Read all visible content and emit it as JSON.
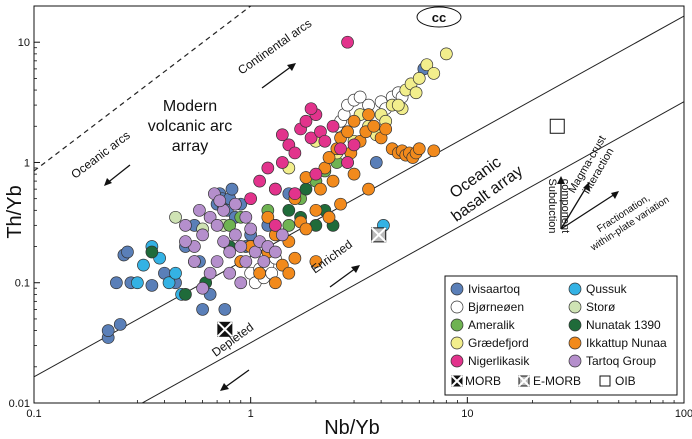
{
  "chart_data": {
    "type": "scatter",
    "xscale": "log",
    "yscale": "log",
    "xlabel": "Nb/Yb",
    "ylabel": "Th/Yb",
    "xlim": [
      0.1,
      100
    ],
    "ylim": [
      0.01,
      20
    ],
    "xticks": [
      {
        "value": 0.1,
        "label": "0.1"
      },
      {
        "value": 1,
        "label": "1"
      },
      {
        "value": 10,
        "label": "10"
      },
      {
        "value": 100,
        "label": "100"
      }
    ],
    "yticks": [
      {
        "value": 0.01,
        "label": "0.01"
      },
      {
        "value": 0.1,
        "label": "0.1"
      },
      {
        "value": 1,
        "label": "1"
      },
      {
        "value": 10,
        "label": "10"
      }
    ],
    "reference_lines": {
      "mantle_array_upper": [
        [
          0.1,
          0.0165
        ],
        [
          100,
          16.5
        ]
      ],
      "mantle_array_lower": [
        [
          0.3,
          0.0095
        ],
        [
          100,
          3.2
        ]
      ],
      "arc_array_dashed": [
        [
          0.1,
          0.85
        ],
        [
          1.0,
          20
        ]
      ]
    },
    "annotations": {
      "cc": "cc",
      "oceanic_arcs": "Oceanic arcs",
      "continental_arcs": "Continental arcs",
      "modern_arc": [
        "Modern",
        "volcanic arc",
        "array"
      ],
      "oceanic_basalt": [
        "Oceanic",
        "basalt array"
      ],
      "enriched": "Enriched",
      "depleted": "Depleted",
      "magma_crust": [
        "Magma-crust",
        "interaction"
      ],
      "subduction": [
        "Subduction",
        "component"
      ],
      "fractionation": [
        "Fractionation,",
        "within-plate variation"
      ]
    },
    "reference_points": [
      {
        "name": "MORB",
        "x": 0.76,
        "y": 0.041,
        "marker": "x-box"
      },
      {
        "name": "E-MORB",
        "x": 3.9,
        "y": 0.25,
        "marker": "x-box-grey"
      },
      {
        "name": "OIB",
        "x": 26,
        "y": 2.0,
        "marker": "open-box"
      }
    ],
    "legend": {
      "position": "bottom-right",
      "items": [
        {
          "name": "Ivisaartoq",
          "color": "#5a7fb8"
        },
        {
          "name": "Qussuk",
          "color": "#34b2e4"
        },
        {
          "name": "Bjørneøen",
          "color": "#ffffff"
        },
        {
          "name": "Storø",
          "color": "#cfe3b4"
        },
        {
          "name": "Ameralik",
          "color": "#6fb352"
        },
        {
          "name": "Nunatak 1390",
          "color": "#1f6b3a"
        },
        {
          "name": "Grædefjord",
          "color": "#f2ee8c"
        },
        {
          "name": "Ikkattup Nunaa",
          "color": "#f28a1c"
        },
        {
          "name": "Nigerlikasik",
          "color": "#e2338c"
        },
        {
          "name": "Tartoq Group",
          "color": "#b58fcc"
        }
      ],
      "ref_items": [
        "MORB",
        "E-MORB",
        "OIB"
      ]
    },
    "series": [
      {
        "name": "Ivisaartoq",
        "color": "#5a7fb8",
        "points": [
          [
            0.22,
            0.035
          ],
          [
            0.22,
            0.04
          ],
          [
            0.25,
            0.045
          ],
          [
            0.24,
            0.1
          ],
          [
            0.28,
            0.1
          ],
          [
            0.26,
            0.17
          ],
          [
            0.27,
            0.18
          ],
          [
            0.35,
            0.095
          ],
          [
            0.4,
            0.12
          ],
          [
            0.45,
            0.1
          ],
          [
            0.5,
            0.2
          ],
          [
            0.55,
            0.3
          ],
          [
            0.58,
            0.15
          ],
          [
            0.6,
            0.06
          ],
          [
            0.65,
            0.08
          ],
          [
            0.7,
            0.45
          ],
          [
            0.72,
            0.55
          ],
          [
            0.74,
            0.5
          ],
          [
            0.75,
            0.42
          ],
          [
            0.78,
            0.4
          ],
          [
            0.8,
            0.5
          ],
          [
            0.82,
            0.6
          ],
          [
            0.85,
            0.35
          ],
          [
            0.9,
            0.45
          ],
          [
            0.95,
            0.2
          ],
          [
            1.0,
            0.25
          ],
          [
            1.2,
            0.3
          ],
          [
            1.5,
            0.55
          ],
          [
            3.8,
            1.0
          ],
          [
            6.3,
            6.0
          ],
          [
            0.76,
            0.06
          ]
        ]
      },
      {
        "name": "Qussuk",
        "color": "#34b2e4",
        "points": [
          [
            0.3,
            0.1
          ],
          [
            0.32,
            0.14
          ],
          [
            0.35,
            0.2
          ],
          [
            0.38,
            0.16
          ],
          [
            0.42,
            0.1
          ],
          [
            0.45,
            0.12
          ],
          [
            0.48,
            0.08
          ],
          [
            4.1,
            0.3
          ]
        ]
      },
      {
        "name": "Bjørneøen",
        "color": "#ffffff",
        "points": [
          [
            0.9,
            0.15
          ],
          [
            1.0,
            0.12
          ],
          [
            1.05,
            0.1
          ],
          [
            1.1,
            0.13
          ],
          [
            1.15,
            0.11
          ],
          [
            1.2,
            0.14
          ],
          [
            1.25,
            0.12
          ],
          [
            1.3,
            0.16
          ],
          [
            2.5,
            2.0
          ],
          [
            2.6,
            2.2
          ],
          [
            2.7,
            2.5
          ],
          [
            2.8,
            3.0
          ],
          [
            3.0,
            3.3
          ],
          [
            3.2,
            3.5
          ],
          [
            3.5,
            3.0
          ],
          [
            4.0,
            3.2
          ],
          [
            4.2,
            2.8
          ],
          [
            4.5,
            3.5
          ],
          [
            4.8,
            3.8
          ],
          [
            5.0,
            3.5
          ]
        ]
      },
      {
        "name": "Storø",
        "color": "#cfe3b4",
        "points": [
          [
            0.45,
            0.35
          ],
          [
            0.6,
            0.28
          ],
          [
            0.75,
            0.3
          ],
          [
            1.0,
            0.2
          ]
        ]
      },
      {
        "name": "Ameralik",
        "color": "#6fb352",
        "points": [
          [
            0.8,
            0.3
          ],
          [
            0.9,
            0.35
          ],
          [
            1.2,
            0.4
          ],
          [
            1.3,
            0.6
          ],
          [
            1.5,
            0.3
          ],
          [
            1.6,
            0.55
          ],
          [
            1.7,
            0.5
          ],
          [
            2.0,
            0.7
          ],
          [
            2.2,
            0.85
          ],
          [
            2.5,
            1.0
          ]
        ]
      },
      {
        "name": "Nunatak 1390",
        "color": "#1f6b3a",
        "points": [
          [
            0.35,
            0.18
          ],
          [
            0.5,
            0.08
          ],
          [
            0.55,
            0.15
          ],
          [
            0.62,
            0.1
          ],
          [
            0.8,
            0.2
          ],
          [
            1.3,
            0.3
          ],
          [
            1.5,
            0.4
          ],
          [
            1.7,
            0.35
          ],
          [
            1.8,
            0.6
          ],
          [
            2.0,
            0.3
          ],
          [
            2.2,
            0.4
          ],
          [
            2.4,
            0.3
          ]
        ]
      },
      {
        "name": "Grædefjord",
        "color": "#f2ee8c",
        "points": [
          [
            1.5,
            0.9
          ],
          [
            2.0,
            1.5
          ],
          [
            2.5,
            1.2
          ],
          [
            3.0,
            1.5
          ],
          [
            3.2,
            2.5
          ],
          [
            3.5,
            2.0
          ],
          [
            4.0,
            2.5
          ],
          [
            4.2,
            2.2
          ],
          [
            4.5,
            3.0
          ],
          [
            5.0,
            2.8
          ],
          [
            5.2,
            4.0
          ],
          [
            5.5,
            4.5
          ],
          [
            5.8,
            3.8
          ],
          [
            6.0,
            5.0
          ],
          [
            6.5,
            6.5
          ],
          [
            7.0,
            5.5
          ],
          [
            8.0,
            8.0
          ],
          [
            4.8,
            3.0
          ],
          [
            3.8,
            1.7
          ],
          [
            2.8,
            1.0
          ]
        ]
      },
      {
        "name": "Ikkattup Nunaa",
        "color": "#f28a1c",
        "points": [
          [
            0.9,
            0.15
          ],
          [
            1.0,
            0.2
          ],
          [
            1.1,
            0.12
          ],
          [
            1.2,
            0.18
          ],
          [
            1.3,
            0.25
          ],
          [
            1.4,
            0.14
          ],
          [
            1.5,
            0.22
          ],
          [
            1.6,
            0.16
          ],
          [
            1.7,
            0.32
          ],
          [
            1.8,
            0.28
          ],
          [
            2.0,
            0.4
          ],
          [
            2.1,
            0.6
          ],
          [
            2.2,
            0.9
          ],
          [
            2.3,
            1.1
          ],
          [
            2.4,
            0.7
          ],
          [
            2.5,
            1.3
          ],
          [
            2.6,
            1.6
          ],
          [
            2.8,
            1.8
          ],
          [
            2.9,
            1.2
          ],
          [
            3.0,
            2.2
          ],
          [
            3.2,
            1.5
          ],
          [
            3.4,
            1.8
          ],
          [
            3.5,
            2.5
          ],
          [
            3.7,
            2.0
          ],
          [
            4.0,
            1.6
          ],
          [
            4.2,
            1.9
          ],
          [
            4.5,
            1.3
          ],
          [
            4.8,
            1.2
          ],
          [
            5.0,
            1.25
          ],
          [
            5.2,
            1.15
          ],
          [
            5.4,
            1.2
          ],
          [
            5.6,
            1.1
          ],
          [
            5.8,
            1.2
          ],
          [
            6.0,
            1.3
          ],
          [
            7.0,
            1.25
          ],
          [
            2.0,
            0.15
          ],
          [
            1.5,
            0.12
          ],
          [
            1.6,
            0.5
          ],
          [
            2.3,
            0.35
          ],
          [
            3.0,
            0.8
          ],
          [
            3.5,
            0.6
          ],
          [
            1.3,
            0.1
          ],
          [
            1.2,
            0.35
          ],
          [
            1.8,
            0.75
          ],
          [
            2.6,
            0.45
          ]
        ]
      },
      {
        "name": "Nigerlikasik",
        "color": "#e2338c",
        "points": [
          [
            1.0,
            0.5
          ],
          [
            1.1,
            0.7
          ],
          [
            1.2,
            0.9
          ],
          [
            1.3,
            0.6
          ],
          [
            1.4,
            1.0
          ],
          [
            1.5,
            1.4
          ],
          [
            1.6,
            1.2
          ],
          [
            1.7,
            1.9
          ],
          [
            1.8,
            2.2
          ],
          [
            1.9,
            1.6
          ],
          [
            2.0,
            2.5
          ],
          [
            2.1,
            1.8
          ],
          [
            2.2,
            1.5
          ],
          [
            2.4,
            2.0
          ],
          [
            2.6,
            1.3
          ],
          [
            2.8,
            1.0
          ],
          [
            3.0,
            1.4
          ],
          [
            1.3,
            0.3
          ],
          [
            1.6,
            0.55
          ],
          [
            2.0,
            0.8
          ],
          [
            2.8,
            10.0
          ],
          [
            1.4,
            1.7
          ],
          [
            1.9,
            2.8
          ]
        ]
      },
      {
        "name": "Tartoq Group",
        "color": "#b58fcc",
        "points": [
          [
            0.5,
            0.3
          ],
          [
            0.55,
            0.2
          ],
          [
            0.6,
            0.25
          ],
          [
            0.65,
            0.35
          ],
          [
            0.7,
            0.3
          ],
          [
            0.75,
            0.22
          ],
          [
            0.8,
            0.18
          ],
          [
            0.85,
            0.25
          ],
          [
            0.9,
            0.2
          ],
          [
            0.95,
            0.15
          ],
          [
            1.0,
            0.28
          ],
          [
            1.05,
            0.18
          ],
          [
            1.1,
            0.22
          ],
          [
            1.15,
            0.15
          ],
          [
            1.2,
            0.2
          ],
          [
            1.3,
            0.18
          ],
          [
            0.65,
            0.12
          ],
          [
            0.7,
            0.15
          ],
          [
            0.75,
            0.4
          ],
          [
            0.85,
            0.45
          ],
          [
            0.6,
            0.09
          ],
          [
            0.55,
            0.15
          ],
          [
            0.8,
            0.12
          ],
          [
            0.95,
            0.35
          ],
          [
            0.5,
            0.22
          ],
          [
            0.58,
            0.4
          ],
          [
            0.68,
            0.55
          ],
          [
            0.72,
            0.48
          ],
          [
            1.4,
            0.25
          ],
          [
            0.9,
            0.1
          ]
        ]
      }
    ]
  }
}
